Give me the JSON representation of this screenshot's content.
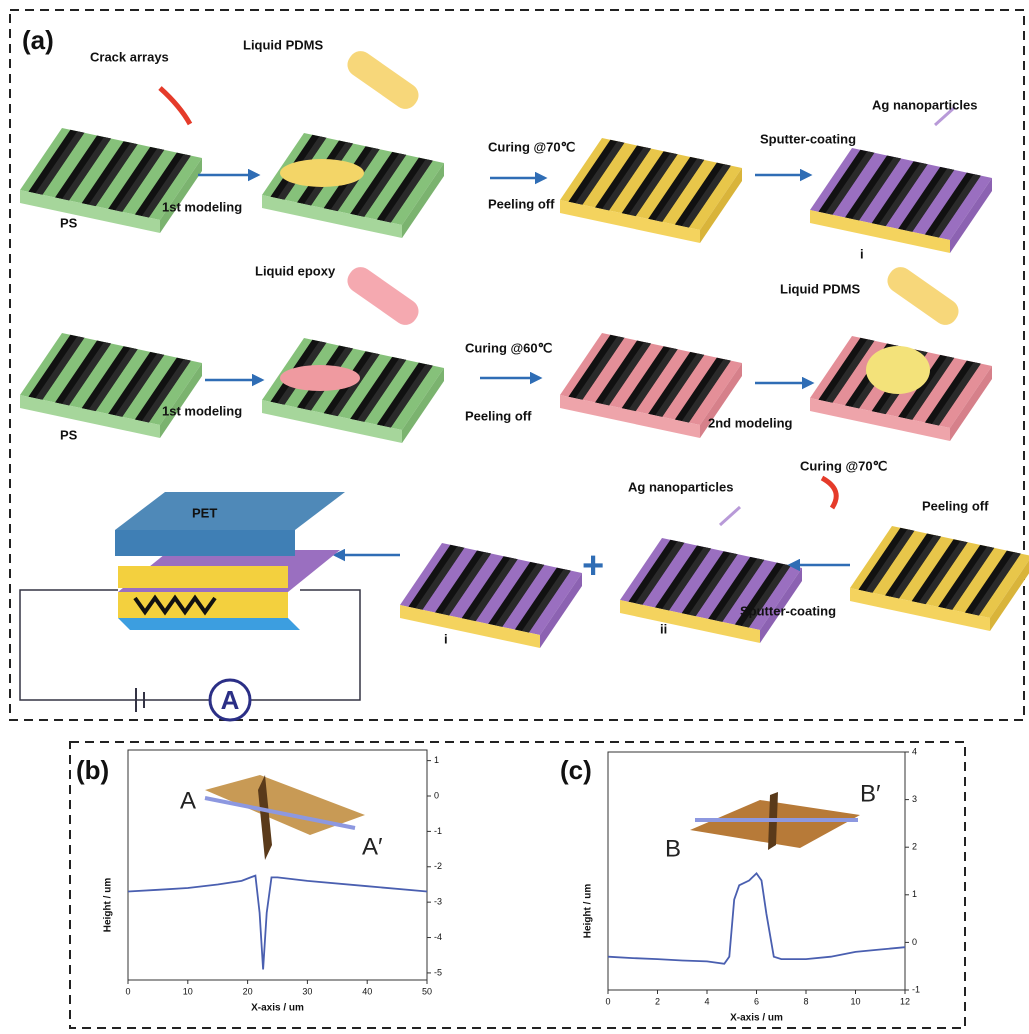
{
  "panel_a": {
    "label": "(a)",
    "row1": {
      "crack": "Crack arrays",
      "liquid": "Liquid PDMS",
      "substrate": "PS",
      "step": "1st modeling",
      "curing": "Curing @70℃",
      "peel": "Peeling off",
      "sputter": "Sputter-coating",
      "ag": "Ag nanoparticles",
      "product": "i"
    },
    "row2": {
      "liquid": "Liquid epoxy",
      "substrate": "PS",
      "step": "1st modeling",
      "curing": "Curing @60℃",
      "peel": "Peeling off",
      "liquid2": "Liquid PDMS",
      "step2": "2nd modeling"
    },
    "row3": {
      "curing": "Curing @70℃",
      "peel": "Peeling off",
      "ag": "Ag nanoparticles",
      "sputter": "Sputter-coating",
      "product2": "ii",
      "product1": "i",
      "plus": "+",
      "top_layer": "PET",
      "meter": "A"
    }
  },
  "panel_b": {
    "label": "(b)",
    "start": "A",
    "end": "A′"
  },
  "panel_c": {
    "label": "(c)",
    "start": "B",
    "end": "B′"
  },
  "chart_data": [
    {
      "type": "line",
      "x_label": "X-axis / um",
      "y_label": "Height / um",
      "xlim": [
        0,
        50
      ],
      "xticks": [
        0,
        10,
        20,
        30,
        40,
        50
      ],
      "ylim": [
        -5.2,
        1.3
      ],
      "yticks": [
        1,
        0,
        -1,
        -2,
        -3,
        -4,
        -5
      ],
      "x": [
        0,
        5,
        10,
        15,
        19,
        20.5,
        21.3,
        22,
        22.6,
        23.2,
        24,
        25,
        30,
        40,
        50
      ],
      "series": [
        {
          "color": "#4a5fb0",
          "values": [
            -2.7,
            -2.65,
            -2.6,
            -2.5,
            -2.4,
            -2.3,
            -2.25,
            -3.3,
            -4.9,
            -3.3,
            -2.3,
            -2.3,
            -2.4,
            -2.55,
            -2.7
          ]
        }
      ]
    },
    {
      "type": "line",
      "x_label": "X-axis / um",
      "y_label": "Height / um",
      "xlim": [
        0,
        12
      ],
      "xticks": [
        0,
        2,
        4,
        6,
        8,
        10,
        12
      ],
      "ylim": [
        -1,
        4
      ],
      "yticks": [
        4,
        3,
        2,
        1,
        0,
        -1
      ],
      "x": [
        0,
        1,
        2,
        3,
        4,
        4.7,
        4.9,
        5.1,
        5.3,
        5.7,
        6,
        6.2,
        6.4,
        6.7,
        7,
        8,
        9,
        10,
        11,
        12
      ],
      "series": [
        {
          "color": "#4a5fb0",
          "values": [
            -0.3,
            -0.33,
            -0.35,
            -0.38,
            -0.4,
            -0.45,
            -0.3,
            0.9,
            1.2,
            1.3,
            1.45,
            1.3,
            0.6,
            -0.3,
            -0.35,
            -0.35,
            -0.3,
            -0.2,
            -0.15,
            -0.1
          ]
        }
      ]
    }
  ]
}
